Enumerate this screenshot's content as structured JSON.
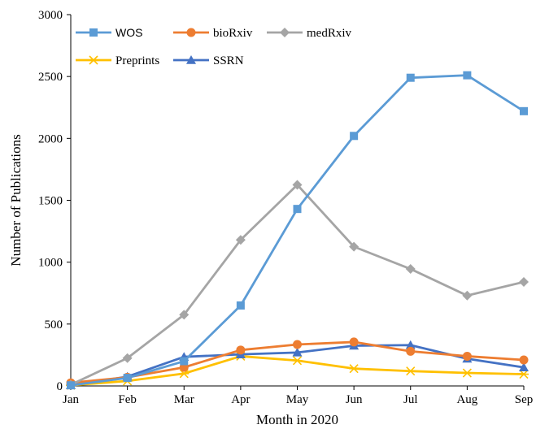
{
  "chart_data": {
    "type": "line",
    "title": "",
    "xlabel": "Month in 2020",
    "ylabel": "Number of Publications",
    "categories": [
      "Jan",
      "Feb",
      "Mar",
      "Apr",
      "May",
      "Jun",
      "Jul",
      "Aug",
      "Sep"
    ],
    "ylim": [
      0,
      3000
    ],
    "yticks": [
      0,
      500,
      1000,
      1500,
      2000,
      2500,
      3000
    ],
    "grid": false,
    "legend_position": "top-left",
    "series": [
      {
        "name": "WOS",
        "color": "#5B9BD5",
        "marker": "square",
        "values": [
          5,
          65,
          200,
          650,
          1430,
          2020,
          2490,
          2510,
          2220
        ]
      },
      {
        "name": "bioRxiv",
        "color": "#ED7D31",
        "marker": "circle",
        "values": [
          25,
          70,
          150,
          290,
          335,
          355,
          280,
          240,
          210
        ]
      },
      {
        "name": "medRxiv",
        "color": "#A5A5A5",
        "marker": "diamond",
        "values": [
          10,
          225,
          575,
          1180,
          1625,
          1125,
          945,
          730,
          840
        ]
      },
      {
        "name": "Preprints",
        "color": "#FFC000",
        "marker": "asterisk",
        "values": [
          5,
          40,
          100,
          240,
          205,
          140,
          120,
          105,
          95
        ]
      },
      {
        "name": "SSRN",
        "color": "#4472C4",
        "marker": "triangle",
        "values": [
          5,
          75,
          235,
          255,
          270,
          325,
          330,
          220,
          150
        ]
      }
    ]
  }
}
